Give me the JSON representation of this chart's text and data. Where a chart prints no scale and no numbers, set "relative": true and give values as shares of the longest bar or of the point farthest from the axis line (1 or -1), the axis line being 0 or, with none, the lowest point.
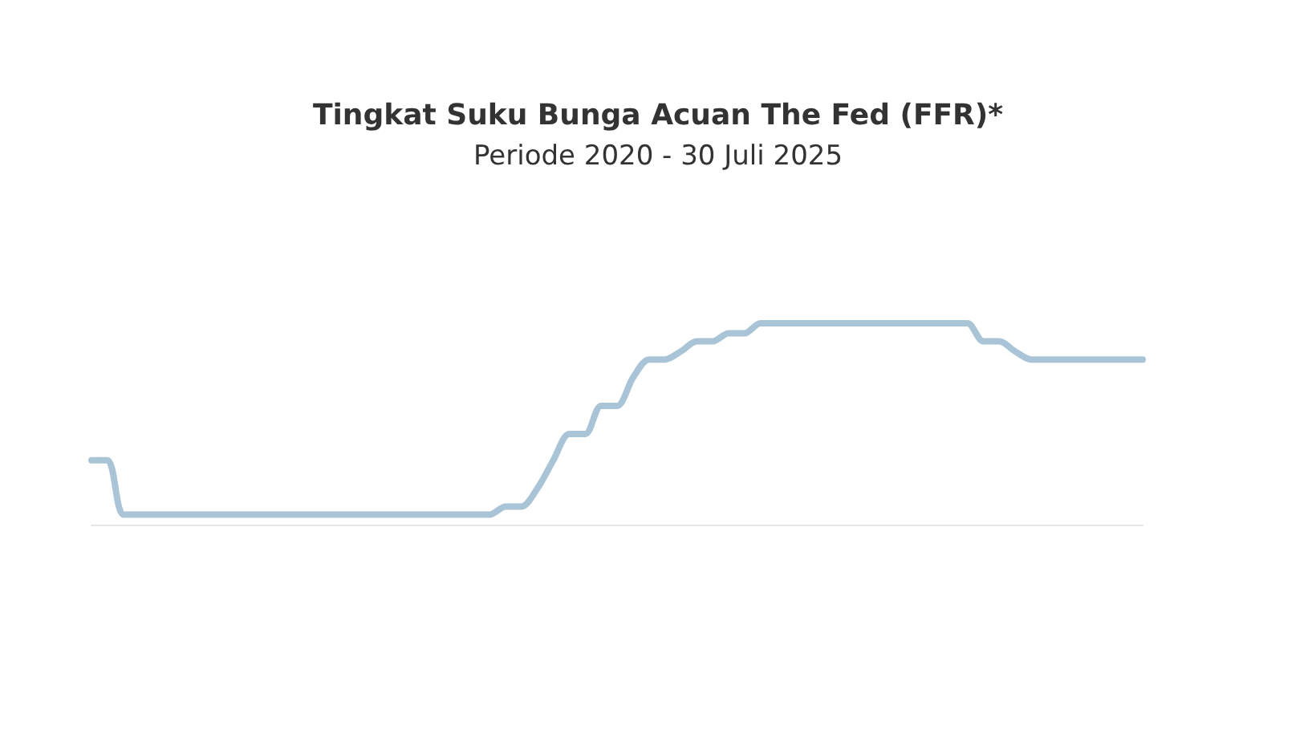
{
  "chart_data": {
    "type": "line",
    "title": "Tingkat Suku Bunga Acuan The Fed (FFR)*",
    "subtitle": "Periode 2020 - 30 Juli 2025",
    "relative": true,
    "marker": "none",
    "categories": [
      null,
      null,
      null,
      null,
      null,
      null,
      null,
      null,
      null,
      null,
      null,
      null,
      null,
      null,
      null,
      null,
      null,
      null,
      null,
      null,
      null,
      null,
      null,
      null,
      null,
      null,
      null,
      null,
      null,
      null,
      null,
      null,
      null,
      null,
      null,
      null,
      null,
      null,
      null,
      null,
      null,
      null,
      null,
      null,
      null,
      null,
      null,
      null,
      null,
      null,
      null,
      null,
      null,
      null,
      null,
      null,
      null,
      null,
      null,
      null,
      null,
      null,
      null,
      null,
      null,
      null,
      null
    ],
    "series": [
      {
        "color": "#a9c4d6",
        "values": [
          0.32,
          0.32,
          0.05,
          0.05,
          0.05,
          0.05,
          0.05,
          0.05,
          0.05,
          0.05,
          0.05,
          0.05,
          0.05,
          0.05,
          0.05,
          0.05,
          0.05,
          0.05,
          0.05,
          0.05,
          0.05,
          0.05,
          0.05,
          0.05,
          0.05,
          0.05,
          0.09,
          0.09,
          0.18,
          0.32,
          0.45,
          0.45,
          0.59,
          0.59,
          0.73,
          0.82,
          0.82,
          0.86,
          0.91,
          0.91,
          0.95,
          0.95,
          1,
          1,
          1,
          1,
          1,
          1,
          1,
          1,
          1,
          1,
          1,
          1,
          1,
          1,
          0.91,
          0.91,
          0.86,
          0.82,
          0.82,
          0.82,
          0.82,
          0.82,
          0.82,
          0.82,
          0.82
        ]
      }
    ]
  }
}
